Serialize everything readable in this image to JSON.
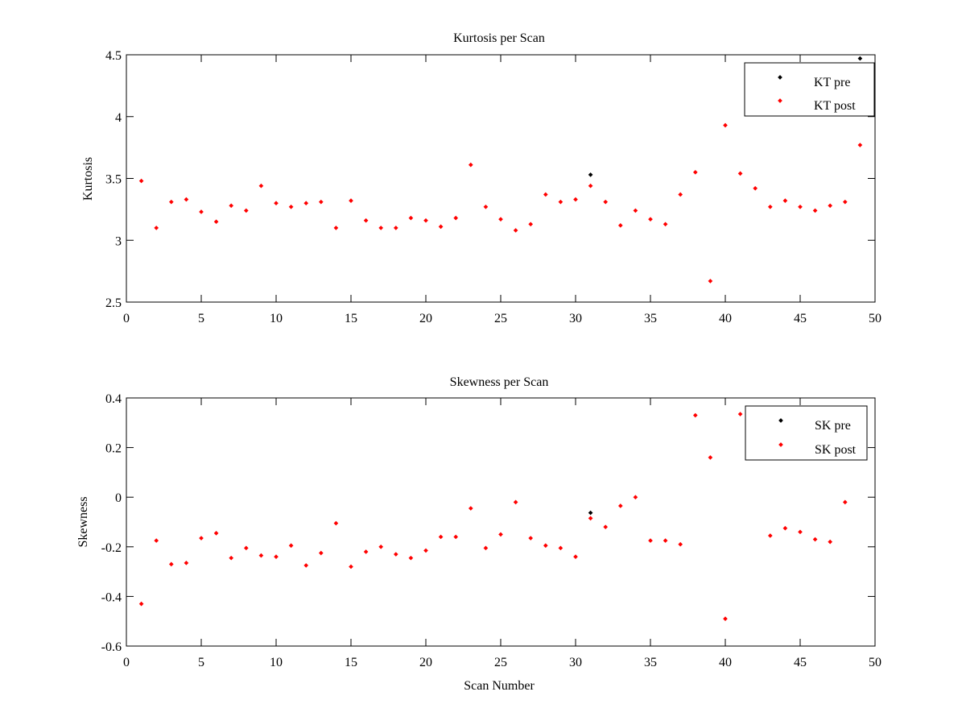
{
  "chart_data": [
    {
      "type": "scatter",
      "title": "Kurtosis per Scan",
      "xlabel": "",
      "ylabel": "Kurtosis",
      "xlim": [
        0,
        50
      ],
      "ylim": [
        2.5,
        4.5
      ],
      "xticks": [
        "0",
        "5",
        "10",
        "15",
        "20",
        "25",
        "30",
        "35",
        "40",
        "45",
        "50"
      ],
      "yticks": [
        "2.5",
        "3",
        "3.5",
        "4",
        "4.5"
      ],
      "grid": false,
      "legend_position": "top-right",
      "series": [
        {
          "name": "KT pre",
          "color": "#000000",
          "x": [
            31,
            49
          ],
          "y": [
            3.53,
            4.47
          ]
        },
        {
          "name": "KT post",
          "color": "#ff0000",
          "x": [
            1,
            2,
            3,
            4,
            5,
            6,
            7,
            8,
            9,
            10,
            11,
            12,
            13,
            14,
            15,
            16,
            17,
            18,
            19,
            20,
            21,
            22,
            23,
            24,
            25,
            26,
            27,
            28,
            29,
            30,
            31,
            32,
            33,
            34,
            35,
            36,
            37,
            38,
            39,
            40,
            41,
            42,
            43,
            44,
            45,
            46,
            47,
            48,
            49
          ],
          "y": [
            3.48,
            3.1,
            3.31,
            3.33,
            3.23,
            3.15,
            3.28,
            3.24,
            3.44,
            3.3,
            3.27,
            3.3,
            3.31,
            3.1,
            3.32,
            3.16,
            3.1,
            3.1,
            3.18,
            3.16,
            3.11,
            3.18,
            3.61,
            3.27,
            3.17,
            3.08,
            3.13,
            3.37,
            3.31,
            3.33,
            3.44,
            3.31,
            3.12,
            3.24,
            3.17,
            3.13,
            3.37,
            3.55,
            2.67,
            3.93,
            3.54,
            3.42,
            3.27,
            3.32,
            3.27,
            3.24,
            3.28,
            3.31,
            3.77
          ]
        }
      ]
    },
    {
      "type": "scatter",
      "title": "Skewness per Scan",
      "xlabel": "Scan Number",
      "ylabel": "Skewness",
      "xlim": [
        0,
        50
      ],
      "ylim": [
        -0.6,
        0.4
      ],
      "xticks": [
        "0",
        "5",
        "10",
        "15",
        "20",
        "25",
        "30",
        "35",
        "40",
        "45",
        "50"
      ],
      "yticks": [
        "-0.6",
        "-0.4",
        "-0.2",
        "0",
        "0.2",
        "0.4"
      ],
      "grid": false,
      "legend_position": "top-right",
      "series": [
        {
          "name": "SK pre",
          "color": "#000000",
          "x": [
            31
          ],
          "y": [
            -0.063
          ]
        },
        {
          "name": "SK post",
          "color": "#ff0000",
          "x": [
            1,
            2,
            3,
            4,
            5,
            6,
            7,
            8,
            9,
            10,
            11,
            12,
            13,
            14,
            15,
            16,
            17,
            18,
            19,
            20,
            21,
            22,
            23,
            24,
            25,
            26,
            27,
            28,
            29,
            30,
            31,
            32,
            33,
            34,
            35,
            36,
            37,
            38,
            39,
            40,
            41,
            43,
            44,
            45,
            46,
            47,
            48
          ],
          "y": [
            -0.43,
            -0.175,
            -0.27,
            -0.265,
            -0.165,
            -0.145,
            -0.245,
            -0.205,
            -0.235,
            -0.24,
            -0.195,
            -0.275,
            -0.225,
            -0.105,
            -0.28,
            -0.22,
            -0.2,
            -0.23,
            -0.245,
            -0.215,
            -0.16,
            -0.16,
            -0.045,
            -0.205,
            -0.15,
            -0.02,
            -0.165,
            -0.195,
            -0.205,
            -0.24,
            -0.085,
            -0.12,
            -0.035,
            0.0,
            -0.175,
            -0.175,
            -0.19,
            0.33,
            0.16,
            -0.49,
            0.335,
            -0.155,
            -0.125,
            -0.14,
            -0.17,
            -0.18,
            -0.02
          ]
        }
      ]
    }
  ]
}
